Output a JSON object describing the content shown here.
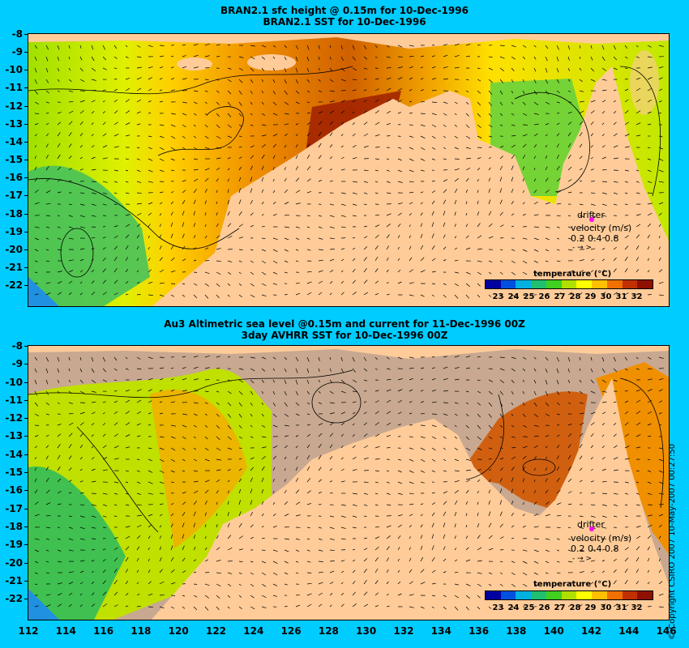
{
  "top_panel": {
    "title_line1": "BRAN2.1 sfc height @ 0.15m for 10-Dec-1996",
    "title_line2": "BRAN2.1 SST for 10-Dec-1996"
  },
  "bottom_panel": {
    "title_line1": "Au3 Altimetric sea level  @0.15m and current for 11-Dec-1996 00Z",
    "title_line2": "3day AVHRR SST for 10-Dec-1996 00Z"
  },
  "y_ticks": [
    "-8",
    "-9",
    "-10",
    "-11",
    "-12",
    "-13",
    "-14",
    "-15",
    "-16",
    "-17",
    "-18",
    "-19",
    "-20",
    "-21",
    "-22"
  ],
  "x_ticks": [
    "112",
    "114",
    "116",
    "118",
    "120",
    "122",
    "124",
    "126",
    "128",
    "130",
    "132",
    "134",
    "136",
    "138",
    "140",
    "142",
    "144",
    "146"
  ],
  "legend": {
    "drifter": "drifter",
    "velocity": "velocity (m/s)",
    "scale": "0.2 0.4 0.8",
    "arrows": "- → >"
  },
  "colorbar": {
    "title": "temperature (°C)",
    "labels": [
      "23",
      "24",
      "25",
      "26",
      "27",
      "28",
      "29",
      "30",
      "31",
      "32"
    ],
    "colors": [
      "#0000a0",
      "#0050e0",
      "#00b0e0",
      "#20c070",
      "#40d020",
      "#b0e000",
      "#ffff00",
      "#ffc000",
      "#f07000",
      "#c03000",
      "#901000"
    ]
  },
  "colors": {
    "background": "#00ccff",
    "land": "#ffcc99",
    "masked": "#c8a890",
    "drifter": "#ff00ff"
  },
  "copyright": "© Copyright CSIRO 2007   10-May-2007 00:27:50"
}
